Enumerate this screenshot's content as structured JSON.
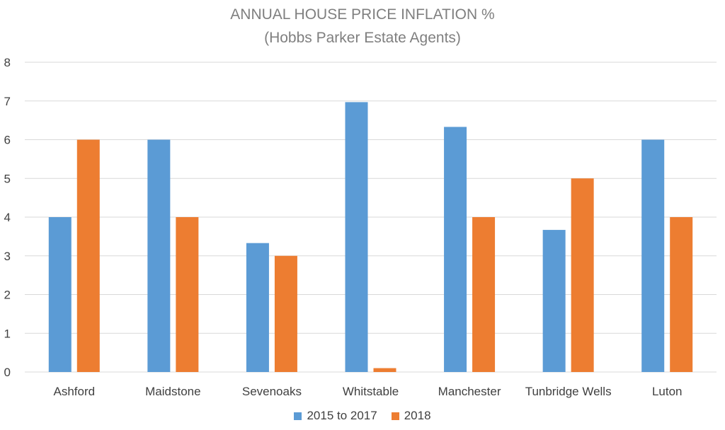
{
  "chart_data": {
    "type": "bar",
    "title": "ANNUAL HOUSE PRICE INFLATION %",
    "subtitle": "(Hobbs Parker Estate Agents)",
    "xlabel": "",
    "ylabel": "",
    "ylim": [
      0,
      8
    ],
    "yticks": [
      "0",
      "1",
      "2",
      "3",
      "4",
      "5",
      "6",
      "7",
      "8"
    ],
    "grid": true,
    "legend_position": "bottom",
    "categories": [
      "Ashford",
      "Maidstone",
      "Sevenoaks",
      "Whitstable",
      "Manchester",
      "Tunbridge Wells",
      "Luton"
    ],
    "series": [
      {
        "name": "2015 to 2017",
        "color": "#5b9bd5",
        "values": [
          4,
          6,
          3.33,
          6.97,
          6.33,
          3.67,
          6
        ]
      },
      {
        "name": "2018",
        "color": "#ed7d31",
        "values": [
          6,
          4,
          3,
          0.1,
          4,
          5,
          4
        ]
      }
    ]
  }
}
